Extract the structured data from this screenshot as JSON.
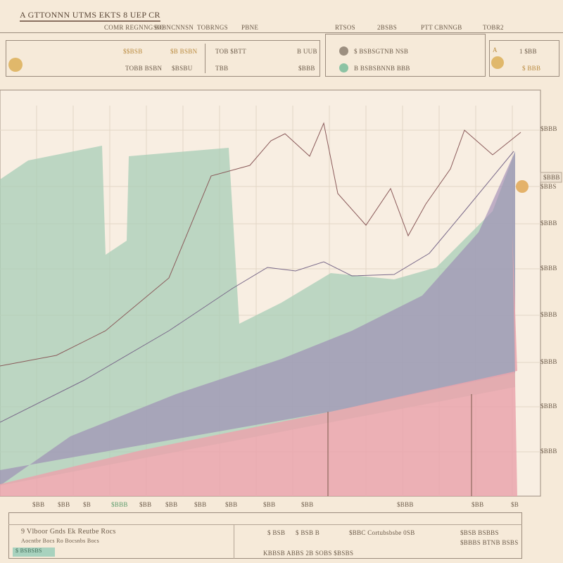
{
  "header": {
    "title": "A GTTONNN UTMS EKTS 8 UEP CR",
    "nav": [
      "COMR REGNNG BO",
      "SOBNCNNSN",
      "TOBRNGS",
      "PBNE",
      "RTSOS",
      "2BSBS",
      "PTT CBNNGB",
      "TOBR2"
    ]
  },
  "cards": [
    {
      "items": [
        "$$BSB",
        "$B BSBN",
        "TOB $BTT",
        "B UUB",
        "TOBB BSBN",
        "$BSBU",
        "TBB",
        "$BBB"
      ]
    },
    {
      "items": [
        "$ BSBSGTNB NSB",
        "B BSBSBNNB BBB"
      ]
    },
    {
      "items": [
        "A",
        "1 $BB",
        "$ BBB"
      ]
    }
  ],
  "chart": {
    "callout": "$BBB",
    "y_labels": [
      "$BBB",
      "$BBS",
      "$BBB",
      "$BBB",
      "$BBB",
      "$BBB",
      "$BBB",
      "$BBB"
    ],
    "x_labels": [
      "$BB",
      "$BB",
      "$B",
      "$BBB",
      "$BB",
      "$BB",
      "$BB",
      "$BB",
      "$BB",
      "$BB",
      "$BBB",
      "$BB",
      "$B"
    ]
  },
  "footer": {
    "title": "9  Vlboor Gnds  Ek  Reutbe Rocs",
    "subtitle": "Aocntbr Bocs Ro Bocsnbs Bocs",
    "button": "$ BSBSBS",
    "cells": [
      "$ BSB",
      "$ BSB B",
      "$BBC Cortubsbsbe 0SB",
      "$BSB BSBBS",
      "KBBSB ABBS 2B SOBS $BSBS",
      "$BBBS BTNB BSBS"
    ]
  }
}
